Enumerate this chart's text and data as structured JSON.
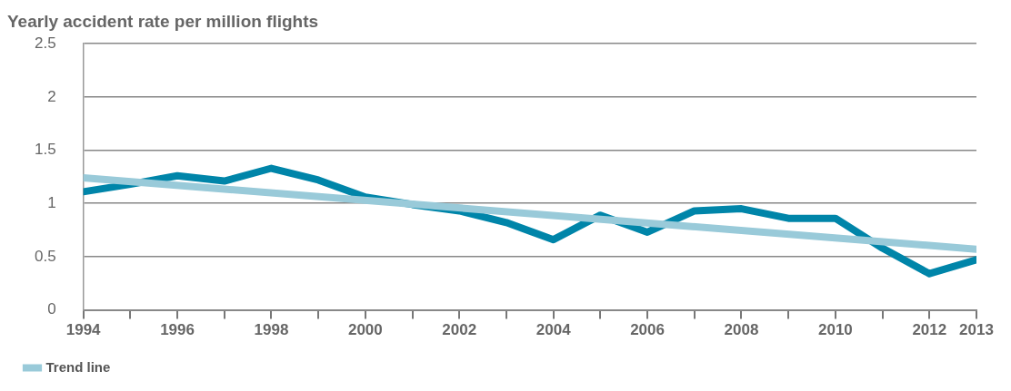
{
  "chart_data": {
    "type": "line",
    "title": "Yearly accident rate per million flights",
    "x": [
      1994,
      1995,
      1996,
      1997,
      1998,
      1999,
      2000,
      2001,
      2002,
      2003,
      2004,
      2005,
      2006,
      2007,
      2008,
      2009,
      2010,
      2011,
      2012,
      2013
    ],
    "series": [
      {
        "color": "#0085a9",
        "values": [
          1.11,
          1.18,
          1.26,
          1.21,
          1.33,
          1.22,
          1.06,
          0.99,
          0.93,
          0.82,
          0.66,
          0.89,
          0.73,
          0.93,
          0.95,
          0.86,
          0.86,
          0.58,
          0.34,
          0.47
        ]
      },
      {
        "name": "Trend line",
        "type": "line",
        "color": "#99cad9",
        "x": [
          1994,
          2013
        ],
        "values": [
          1.24,
          0.57
        ]
      }
    ],
    "xlim": [
      1994,
      2013
    ],
    "xticks": [
      1994,
      {
        "value": 1995,
        "label": null
      },
      1996,
      {
        "value": 1997,
        "label": null
      },
      1998,
      {
        "value": 1999,
        "label": null
      },
      2000,
      {
        "value": 2001,
        "label": null
      },
      2002,
      {
        "value": 2003,
        "label": null
      },
      2004,
      {
        "value": 2005,
        "label": null
      },
      2006,
      {
        "value": 2007,
        "label": null
      },
      2008,
      {
        "value": 2009,
        "label": null
      },
      2010,
      {
        "value": 2011,
        "label": null
      },
      2012,
      2013
    ],
    "ylim": [
      0,
      2.5
    ],
    "yticks": [
      0,
      0.5,
      1,
      1.5,
      2,
      2.5
    ],
    "grid": "y",
    "legend": "bottom left",
    "marker": "none",
    "line_style": "solid"
  }
}
